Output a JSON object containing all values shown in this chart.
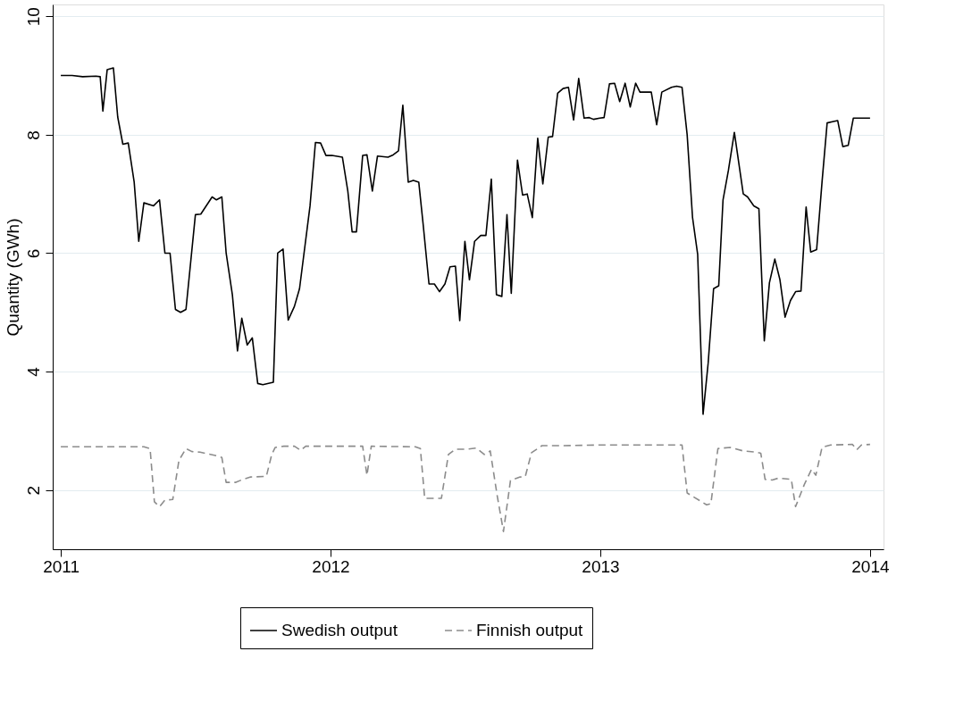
{
  "chart_data": {
    "type": "line",
    "ylabel": "Quantity (GWh)",
    "xlim": [
      2010.97,
      2014.05
    ],
    "xticks": [
      2011,
      2012,
      2013,
      2014
    ],
    "ylim": [
      1,
      10.2
    ],
    "yticks": [
      2,
      4,
      6,
      8,
      10
    ],
    "grid": "y",
    "legend": "bottom",
    "series": [
      {
        "name": "Swedish output",
        "color": "#000000",
        "line_style": "solid",
        "x": [
          2011.0,
          2011.042,
          2011.081,
          2011.13,
          2011.146,
          2011.156,
          2011.172,
          2011.195,
          2011.211,
          2011.23,
          2011.25,
          2011.272,
          2011.289,
          2011.308,
          2011.344,
          2011.366,
          2011.386,
          2011.405,
          2011.425,
          2011.444,
          2011.464,
          2011.499,
          2011.519,
          2011.561,
          2011.577,
          2011.597,
          2011.613,
          2011.636,
          2011.655,
          2011.671,
          2011.691,
          2011.71,
          2011.73,
          2011.749,
          2011.788,
          2011.804,
          2011.824,
          2011.843,
          2011.866,
          2011.885,
          2011.924,
          2011.944,
          2011.963,
          2011.983,
          2012.005,
          2012.044,
          2012.064,
          2012.08,
          2012.096,
          2012.119,
          2012.135,
          2012.155,
          2012.174,
          2012.213,
          2012.232,
          2012.252,
          2012.268,
          2012.288,
          2012.307,
          2012.327,
          2012.343,
          2012.365,
          2012.385,
          2012.404,
          2012.424,
          2012.443,
          2012.463,
          2012.479,
          2012.498,
          2012.515,
          2012.534,
          2012.557,
          2012.576,
          2012.596,
          2012.615,
          2012.635,
          2012.654,
          2012.67,
          2012.693,
          2012.712,
          2012.729,
          2012.748,
          2012.768,
          2012.787,
          2012.807,
          2012.823,
          2012.842,
          2012.862,
          2012.882,
          2012.901,
          2012.92,
          2012.94,
          2012.959,
          2012.975,
          2012.998,
          2013.014,
          2013.034,
          2013.053,
          2013.072,
          2013.092,
          2013.111,
          2013.131,
          2013.147,
          2013.189,
          2013.209,
          2013.228,
          2013.264,
          2013.283,
          2013.303,
          2013.322,
          2013.342,
          2013.361,
          2013.381,
          2013.4,
          2013.42,
          2013.439,
          2013.455,
          2013.475,
          2013.497,
          2013.53,
          2013.546,
          2013.569,
          2013.588,
          2013.608,
          2013.627,
          2013.647,
          2013.666,
          2013.685,
          2013.705,
          2013.724,
          2013.744,
          2013.763,
          2013.78,
          2013.802,
          2013.822,
          2013.841,
          2013.861,
          2013.88,
          2013.899,
          2013.919,
          2013.938,
          2014.0
        ],
        "values": [
          9.0,
          9.0,
          8.98,
          8.99,
          8.98,
          8.4,
          9.1,
          9.13,
          8.3,
          7.84,
          7.86,
          7.2,
          6.2,
          6.85,
          6.8,
          6.9,
          6.0,
          6.0,
          5.05,
          5.0,
          5.05,
          6.65,
          6.66,
          6.95,
          6.9,
          6.95,
          6.0,
          5.3,
          4.35,
          4.9,
          4.45,
          4.57,
          3.8,
          3.78,
          3.82,
          6.0,
          6.07,
          4.87,
          5.1,
          5.4,
          6.8,
          7.87,
          7.86,
          7.65,
          7.65,
          7.62,
          7.05,
          6.36,
          6.36,
          7.65,
          7.66,
          7.05,
          7.64,
          7.62,
          7.66,
          7.73,
          8.5,
          7.2,
          7.23,
          7.2,
          6.5,
          5.48,
          5.48,
          5.35,
          5.48,
          5.77,
          5.78,
          4.86,
          6.2,
          5.55,
          6.2,
          6.3,
          6.3,
          7.25,
          5.3,
          5.27,
          6.65,
          5.32,
          7.57,
          6.98,
          7.0,
          6.6,
          7.94,
          7.17,
          7.96,
          7.97,
          8.7,
          8.78,
          8.8,
          8.25,
          8.95,
          8.28,
          8.29,
          8.26,
          8.28,
          8.29,
          8.86,
          8.87,
          8.56,
          8.87,
          8.47,
          8.87,
          8.72,
          8.72,
          8.17,
          8.72,
          8.8,
          8.82,
          8.8,
          8.0,
          6.6,
          5.98,
          3.28,
          4.15,
          5.4,
          5.45,
          6.9,
          7.4,
          8.04,
          7.0,
          6.95,
          6.8,
          6.75,
          4.52,
          5.5,
          5.9,
          5.55,
          4.92,
          5.2,
          5.35,
          5.36,
          6.78,
          6.02,
          6.06,
          7.2,
          8.2,
          8.22,
          8.24,
          7.8,
          7.82,
          8.28,
          8.28
        ]
      },
      {
        "name": "Finnish output",
        "color": "#8c8c8c",
        "line_style": "dashed",
        "x": [
          2011.0,
          2011.308,
          2011.331,
          2011.347,
          2011.366,
          2011.386,
          2011.415,
          2011.438,
          2011.464,
          2011.486,
          2011.516,
          2011.577,
          2011.597,
          2011.613,
          2011.649,
          2011.675,
          2011.704,
          2011.762,
          2011.782,
          2011.795,
          2011.827,
          2011.866,
          2011.889,
          2011.908,
          2012.119,
          2012.135,
          2012.151,
          2012.314,
          2012.333,
          2012.349,
          2012.411,
          2012.437,
          2012.463,
          2012.508,
          2012.541,
          2012.57,
          2012.592,
          2012.618,
          2012.641,
          2012.667,
          2012.703,
          2012.722,
          2012.745,
          2012.784,
          2012.865,
          2012.995,
          2013.254,
          2013.303,
          2013.322,
          2013.394,
          2013.41,
          2013.436,
          2013.481,
          2013.53,
          2013.578,
          2013.595,
          2013.611,
          2013.637,
          2013.66,
          2013.708,
          2013.724,
          2013.757,
          2013.783,
          2013.799,
          2013.822,
          2013.854,
          2013.935,
          2013.951,
          2013.968,
          2014.0
        ],
        "values": [
          2.73,
          2.73,
          2.7,
          1.8,
          1.72,
          1.83,
          1.84,
          2.5,
          2.7,
          2.65,
          2.64,
          2.58,
          2.55,
          2.13,
          2.13,
          2.18,
          2.22,
          2.23,
          2.6,
          2.72,
          2.74,
          2.74,
          2.67,
          2.74,
          2.74,
          2.25,
          2.74,
          2.73,
          2.7,
          1.86,
          1.86,
          2.6,
          2.69,
          2.69,
          2.71,
          2.6,
          2.66,
          1.9,
          1.3,
          2.16,
          2.22,
          2.23,
          2.63,
          2.75,
          2.75,
          2.76,
          2.76,
          2.76,
          1.95,
          1.75,
          1.77,
          2.7,
          2.72,
          2.66,
          2.64,
          2.62,
          2.18,
          2.17,
          2.2,
          2.18,
          1.72,
          2.1,
          2.35,
          2.25,
          2.72,
          2.76,
          2.77,
          2.68,
          2.76,
          2.77
        ]
      }
    ]
  }
}
